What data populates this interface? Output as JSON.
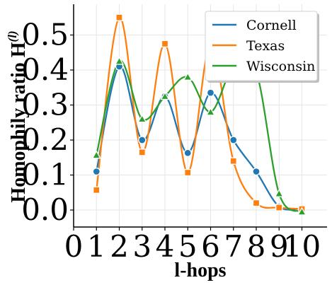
{
  "chart_data": {
    "type": "line",
    "xlabel": "l-hops",
    "ylabel": "Homophily ratio H",
    "ylabel_superscript": "(l)",
    "x_ticks": [
      "0",
      "1",
      "2",
      "3",
      "4",
      "5",
      "6",
      "7",
      "8",
      "9",
      "10"
    ],
    "y_ticks": [
      "0.0",
      "0.1",
      "0.2",
      "0.3",
      "0.4",
      "0.5"
    ],
    "xlim": [
      0,
      11.1
    ],
    "ylim": [
      -0.07,
      0.9
    ],
    "grid": true,
    "legend_position": "top-right",
    "x": [
      1,
      2,
      3,
      4,
      5,
      6,
      7,
      8,
      9,
      10
    ],
    "series": [
      {
        "name": "Cornell",
        "color": "#1f77b4",
        "marker": "circle",
        "values": [
          0.11,
          0.41,
          0.2,
          0.325,
          0.163,
          0.335,
          0.2,
          0.11,
          0.01,
          0.005
        ]
      },
      {
        "name": "Texas",
        "color": "#ff7f0e",
        "marker": "square",
        "values": [
          0.057,
          0.55,
          0.165,
          0.475,
          0.107,
          0.475,
          0.14,
          0.02,
          0.007,
          0.003
        ]
      },
      {
        "name": "Wisconsin",
        "color": "#2ca02c",
        "marker": "triangle",
        "values": [
          0.157,
          0.425,
          0.26,
          0.325,
          0.38,
          0.28,
          0.41,
          0.395,
          0.047,
          -0.005
        ]
      }
    ]
  }
}
